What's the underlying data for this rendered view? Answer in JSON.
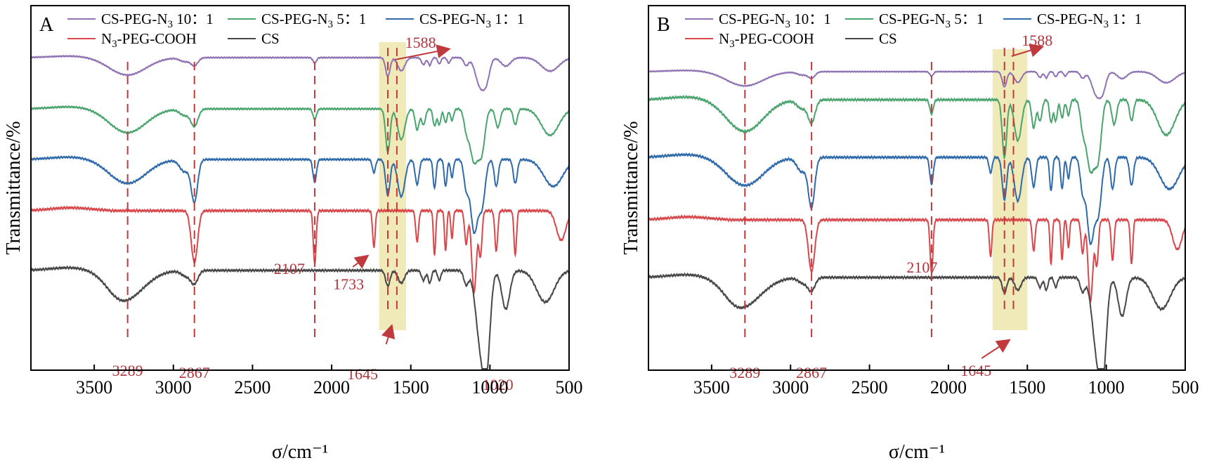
{
  "chart_data": [
    {
      "type": "line",
      "panel_label": "A",
      "xlabel": "σ/cm⁻¹",
      "ylabel": "Transmittance/%",
      "xlim": [
        3900,
        500
      ],
      "x_ticks": [
        3500,
        3000,
        2500,
        2000,
        1500,
        1000,
        500
      ],
      "grid": false,
      "legend_position": "top",
      "highlight_band": [
        1700,
        1530
      ],
      "dashed_lines": [
        3289,
        2867,
        2107,
        1645,
        1588
      ],
      "annotations": [
        {
          "text": "3289",
          "x": 3289
        },
        {
          "text": "2867",
          "x": 2867
        },
        {
          "text": "2107",
          "x": 2107
        },
        {
          "text": "1733",
          "x": 1733
        },
        {
          "text": "1645",
          "x": 1645
        },
        {
          "text": "1588",
          "x": 1588
        },
        {
          "text": "1020",
          "x": 1020
        }
      ],
      "series": [
        {
          "name": "CS-PEG-N₃ 10：1",
          "color": "#8e72b3",
          "offset": 82,
          "scale": 0.55
        },
        {
          "name": "CS-PEG-N₃ 5：1",
          "color": "#4aa46e",
          "offset": 155,
          "scale": 0.75
        },
        {
          "name": "CS-PEG-N₃ 1：1",
          "color": "#2f6aab",
          "offset": 227,
          "scale": 0.85
        },
        {
          "name": "N₃-PEG-COOH",
          "color": "#d9474b",
          "offset": 300,
          "scale": 1.05
        },
        {
          "name": "CS",
          "color": "#474747",
          "offset": 385,
          "scale": 1.0
        }
      ]
    },
    {
      "type": "line",
      "panel_label": "B",
      "xlabel": "σ/cm⁻¹",
      "ylabel": "Transmittance/%",
      "xlim": [
        3900,
        500
      ],
      "x_ticks": [
        3500,
        3000,
        2500,
        2000,
        1500,
        1000,
        500
      ],
      "grid": false,
      "legend_position": "top",
      "highlight_band": [
        1720,
        1500
      ],
      "dashed_lines": [
        3289,
        2867,
        2107,
        1645,
        1588
      ],
      "annotations": [
        {
          "text": "3289",
          "x": 3289
        },
        {
          "text": "2867",
          "x": 2867
        },
        {
          "text": "2107",
          "x": 2107
        },
        {
          "text": "1645",
          "x": 1645
        },
        {
          "text": "1588",
          "x": 1588
        }
      ],
      "series": [
        {
          "name": "CS-PEG-N₃ 10：1",
          "color": "#8e72b3",
          "offset": 102,
          "scale": 0.45
        },
        {
          "name": "CS-PEG-N₃ 5：1",
          "color": "#4aa46e",
          "offset": 142,
          "scale": 1.0
        },
        {
          "name": "CS-PEG-N₃ 1：1",
          "color": "#2f6aab",
          "offset": 224,
          "scale": 1.0
        },
        {
          "name": "N₃-PEG-COOH",
          "color": "#d9474b",
          "offset": 313,
          "scale": 1.05
        },
        {
          "name": "CS",
          "color": "#474747",
          "offset": 395,
          "scale": 1.0
        }
      ]
    }
  ],
  "colors": {
    "annotation": "#b0343a",
    "highlight": "#efe8b4",
    "axis": "#000000"
  }
}
